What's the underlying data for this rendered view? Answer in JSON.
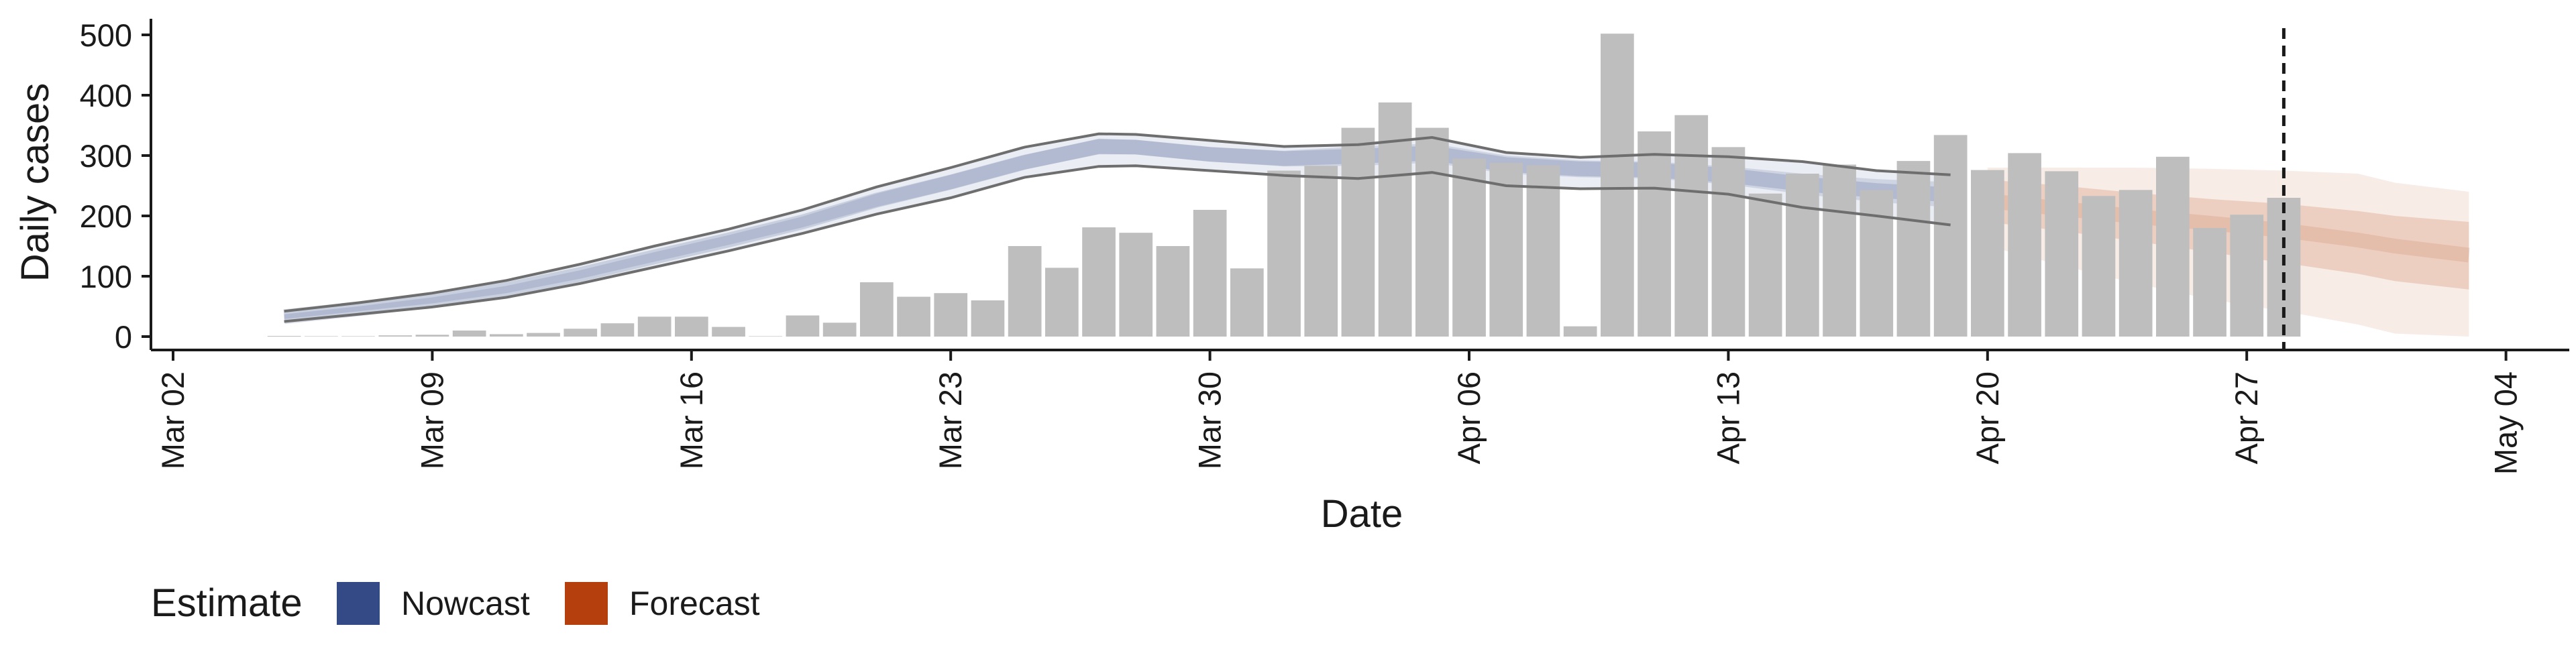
{
  "chart_data": {
    "type": "bar",
    "xlabel": "Date",
    "ylabel": "Daily cases",
    "ylim": [
      0,
      520
    ],
    "y_ticks": [
      "0",
      "100",
      "200",
      "300",
      "400",
      "500"
    ],
    "x_tick_labels": [
      "Mar 02",
      "Mar 09",
      "Mar 16",
      "Mar 23",
      "Mar 30",
      "Apr 06",
      "Apr 13",
      "Apr 20",
      "Apr 27",
      "May 04"
    ],
    "x_tick_dates": [
      "2020-03-02",
      "2020-03-09",
      "2020-03-16",
      "2020-03-23",
      "2020-03-30",
      "2020-04-06",
      "2020-04-13",
      "2020-04-20",
      "2020-04-27",
      "2020-05-04"
    ],
    "grid": false,
    "legend": {
      "title": "Estimate",
      "position": "bottom-left",
      "entries": [
        {
          "label": "Nowcast",
          "color": "#344A86"
        },
        {
          "label": "Forecast",
          "color": "#B5400E"
        }
      ]
    },
    "colors": {
      "bars": "#BEBEBE",
      "nowcast": "#344A86",
      "forecast": "#B5400E",
      "outline": "#6E6E6E",
      "vline": "#1A1A1A"
    },
    "vline_date": "2020-04-28",
    "bars": {
      "dates": [
        "2020-03-05",
        "2020-03-06",
        "2020-03-07",
        "2020-03-08",
        "2020-03-09",
        "2020-03-10",
        "2020-03-11",
        "2020-03-12",
        "2020-03-13",
        "2020-03-14",
        "2020-03-15",
        "2020-03-16",
        "2020-03-17",
        "2020-03-18",
        "2020-03-19",
        "2020-03-20",
        "2020-03-21",
        "2020-03-22",
        "2020-03-23",
        "2020-03-24",
        "2020-03-25",
        "2020-03-26",
        "2020-03-27",
        "2020-03-28",
        "2020-03-29",
        "2020-03-30",
        "2020-03-31",
        "2020-04-01",
        "2020-04-02",
        "2020-04-03",
        "2020-04-04",
        "2020-04-05",
        "2020-04-06",
        "2020-04-07",
        "2020-04-08",
        "2020-04-09",
        "2020-04-10",
        "2020-04-11",
        "2020-04-12",
        "2020-04-13",
        "2020-04-14",
        "2020-04-15",
        "2020-04-16",
        "2020-04-17",
        "2020-04-18",
        "2020-04-19",
        "2020-04-20",
        "2020-04-21",
        "2020-04-22",
        "2020-04-23",
        "2020-04-24",
        "2020-04-25",
        "2020-04-26",
        "2020-04-27",
        "2020-04-28"
      ],
      "values": [
        1,
        0,
        0,
        2,
        3,
        10,
        4,
        6,
        13,
        22,
        33,
        33,
        16,
        0,
        35,
        23,
        90,
        66,
        72,
        60,
        150,
        114,
        181,
        172,
        150,
        210,
        113,
        275,
        283,
        346,
        388,
        346,
        295,
        288,
        284,
        17,
        502,
        340,
        367,
        314,
        237,
        270,
        285,
        243,
        291,
        334,
        276,
        304,
        274,
        233,
        243,
        298,
        180,
        202,
        230
      ]
    },
    "nowcast": {
      "dates": [
        "2020-03-05",
        "2020-03-07",
        "2020-03-09",
        "2020-03-11",
        "2020-03-13",
        "2020-03-15",
        "2020-03-17",
        "2020-03-19",
        "2020-03-21",
        "2020-03-23",
        "2020-03-25",
        "2020-03-27",
        "2020-03-28",
        "2020-03-30",
        "2020-04-01",
        "2020-04-03",
        "2020-04-05",
        "2020-04-07",
        "2020-04-09",
        "2020-04-11",
        "2020-04-13",
        "2020-04-15",
        "2020-04-17",
        "2020-04-19"
      ],
      "mid": [
        33,
        46,
        60,
        78,
        103,
        132,
        160,
        190,
        226,
        256,
        289,
        315,
        314,
        302,
        295,
        299,
        304,
        285,
        278,
        276,
        267,
        253,
        242,
        235
      ],
      "inner_lo": [
        29,
        42,
        55,
        72,
        96,
        124,
        152,
        181,
        215,
        244,
        277,
        302,
        302,
        290,
        282,
        283,
        288,
        270,
        264,
        262,
        252,
        236,
        223,
        214
      ],
      "inner_hi": [
        37,
        50,
        65,
        84,
        110,
        140,
        168,
        199,
        237,
        268,
        301,
        328,
        326,
        314,
        308,
        315,
        320,
        300,
        292,
        290,
        282,
        270,
        261,
        256
      ],
      "outer_lo": [
        25,
        37,
        49,
        65,
        88,
        115,
        142,
        171,
        203,
        230,
        264,
        282,
        283,
        275,
        267,
        262,
        272,
        250,
        245,
        246,
        236,
        214,
        200,
        185
      ],
      "outer_hi": [
        42,
        56,
        72,
        93,
        120,
        150,
        178,
        210,
        248,
        280,
        314,
        336,
        335,
        325,
        315,
        318,
        330,
        305,
        297,
        302,
        298,
        290,
        275,
        268
      ]
    },
    "forecast": {
      "dates": [
        "2020-04-20",
        "2020-04-22",
        "2020-04-24",
        "2020-04-26",
        "2020-04-28",
        "2020-04-30",
        "2020-05-01",
        "2020-05-03"
      ],
      "mid": [
        225,
        212,
        199,
        188,
        176,
        160,
        150,
        135
      ],
      "inner_lo": [
        190,
        175,
        158,
        140,
        122,
        104,
        92,
        78
      ],
      "inner_hi": [
        260,
        250,
        238,
        228,
        220,
        208,
        200,
        190
      ],
      "outer_lo": [
        150,
        118,
        88,
        62,
        42,
        20,
        5,
        0
      ],
      "outer_hi": [
        280,
        280,
        280,
        278,
        275,
        270,
        255,
        240
      ]
    }
  }
}
